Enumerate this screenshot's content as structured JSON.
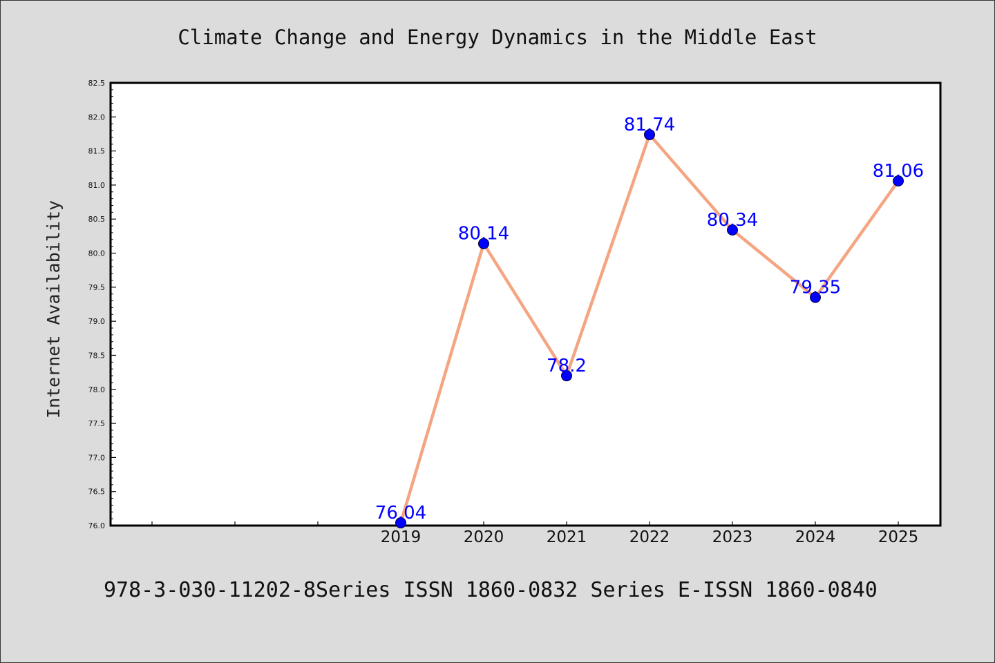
{
  "chart_data": {
    "type": "line",
    "title": "Climate Change and Energy Dynamics in the Middle East",
    "xlabel": "",
    "ylabel": "Internet Availability",
    "x": [
      "2019",
      "2020",
      "2021",
      "2022",
      "2023",
      "2024",
      "2025"
    ],
    "series": [
      {
        "values": [
          76.04,
          80.14,
          78.2,
          81.74,
          80.34,
          79.35,
          81.06
        ],
        "labels": [
          "76.04",
          "80.14",
          "78.2",
          "81.74",
          "80.34",
          "79.35",
          "81.06"
        ]
      }
    ],
    "ylim": [
      76.0,
      82.5
    ],
    "y_ticks": [
      "76.0",
      "76.5",
      "77.0",
      "77.5",
      "78.0",
      "78.5",
      "79.0",
      "79.5",
      "80.0",
      "80.5",
      "81.0",
      "81.5",
      "82.0",
      "82.5"
    ],
    "grid": false,
    "colors": {
      "line": "#f4a582",
      "marker": "#0000ff",
      "data_label": "#0000ff",
      "background": "#dcdcdc",
      "plot_background": "#ffffff"
    }
  },
  "footer": {
    "text": "978-3-030-11202-8Series ISSN 1860-0832 Series E-ISSN 1860-0840"
  }
}
